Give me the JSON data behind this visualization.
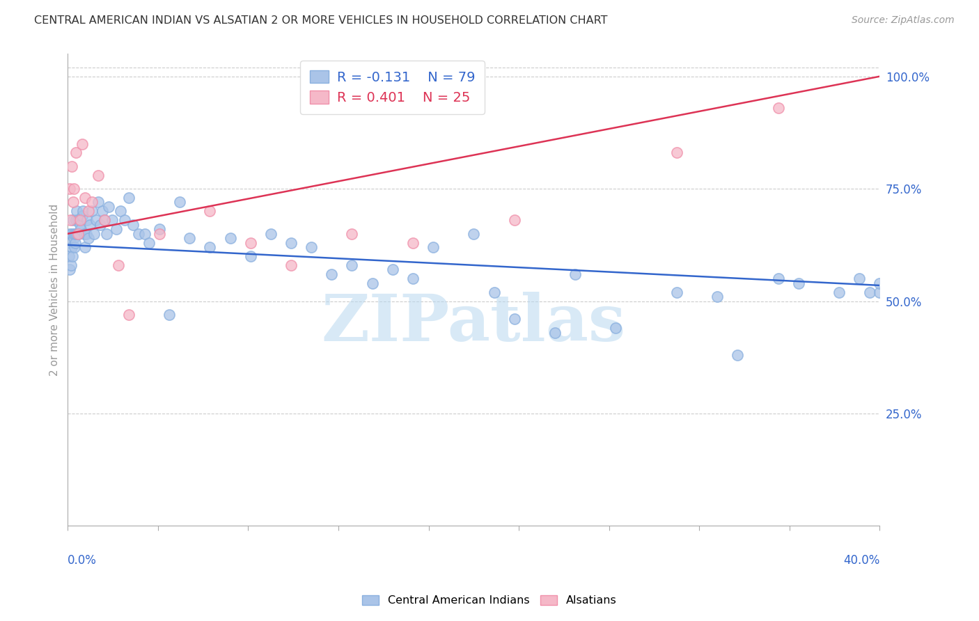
{
  "title": "CENTRAL AMERICAN INDIAN VS ALSATIAN 2 OR MORE VEHICLES IN HOUSEHOLD CORRELATION CHART",
  "source": "Source: ZipAtlas.com",
  "ylabel": "2 or more Vehicles in Household",
  "ytick_values": [
    25,
    50,
    75,
    100
  ],
  "legend_blue_label": "Central American Indians",
  "legend_pink_label": "Alsatians",
  "blue_R": -0.131,
  "blue_N": 79,
  "pink_R": 0.401,
  "pink_N": 25,
  "blue_dot_color": "#aac4e8",
  "pink_dot_color": "#f5b8c8",
  "blue_edge_color": "#8ab0df",
  "pink_edge_color": "#f090aa",
  "blue_line_color": "#3366cc",
  "pink_line_color": "#dd3355",
  "grid_color": "#cccccc",
  "watermark_color": "#b8d8f0",
  "xmin": 0.0,
  "xmax": 40.0,
  "ymin": 0.0,
  "ymax": 105.0,
  "blue_trend_y0": 62.5,
  "blue_trend_y1": 53.5,
  "pink_trend_y0": 65.0,
  "pink_trend_y1": 100.0,
  "blue_scatter_x": [
    0.05,
    0.08,
    0.1,
    0.12,
    0.15,
    0.18,
    0.2,
    0.22,
    0.25,
    0.28,
    0.3,
    0.32,
    0.35,
    0.38,
    0.4,
    0.42,
    0.45,
    0.5,
    0.55,
    0.6,
    0.65,
    0.7,
    0.75,
    0.8,
    0.85,
    0.9,
    0.95,
    1.0,
    1.1,
    1.2,
    1.3,
    1.4,
    1.5,
    1.6,
    1.7,
    1.8,
    1.9,
    2.0,
    2.2,
    2.4,
    2.6,
    2.8,
    3.0,
    3.2,
    3.5,
    3.8,
    4.0,
    4.5,
    5.0,
    5.5,
    6.0,
    7.0,
    8.0,
    9.0,
    10.0,
    11.0,
    12.0,
    13.0,
    14.0,
    15.0,
    16.0,
    17.0,
    18.0,
    20.0,
    21.0,
    22.0,
    24.0,
    25.0,
    27.0,
    30.0,
    32.0,
    33.0,
    35.0,
    36.0,
    38.0,
    39.0,
    39.5,
    40.0,
    40.0
  ],
  "blue_scatter_y": [
    60,
    57,
    65,
    63,
    58,
    62,
    65,
    60,
    68,
    64,
    65,
    62,
    63,
    65,
    68,
    70,
    65,
    68,
    65,
    67,
    66,
    69,
    70,
    65,
    62,
    65,
    68,
    64,
    67,
    70,
    65,
    68,
    72,
    67,
    70,
    68,
    65,
    71,
    68,
    66,
    70,
    68,
    73,
    67,
    65,
    65,
    63,
    66,
    47,
    72,
    64,
    62,
    64,
    60,
    65,
    63,
    62,
    56,
    58,
    54,
    57,
    55,
    62,
    65,
    52,
    46,
    43,
    56,
    44,
    52,
    51,
    38,
    55,
    54,
    52,
    55,
    52,
    52,
    54
  ],
  "pink_scatter_x": [
    0.08,
    0.12,
    0.18,
    0.25,
    0.3,
    0.4,
    0.5,
    0.6,
    0.7,
    0.85,
    1.0,
    1.2,
    1.5,
    1.8,
    2.5,
    3.0,
    4.5,
    7.0,
    9.0,
    11.0,
    14.0,
    17.0,
    22.0,
    30.0,
    35.0
  ],
  "pink_scatter_y": [
    75,
    68,
    80,
    72,
    75,
    83,
    65,
    68,
    85,
    73,
    70,
    72,
    78,
    68,
    58,
    47,
    65,
    70,
    63,
    58,
    65,
    63,
    68,
    83,
    93
  ]
}
